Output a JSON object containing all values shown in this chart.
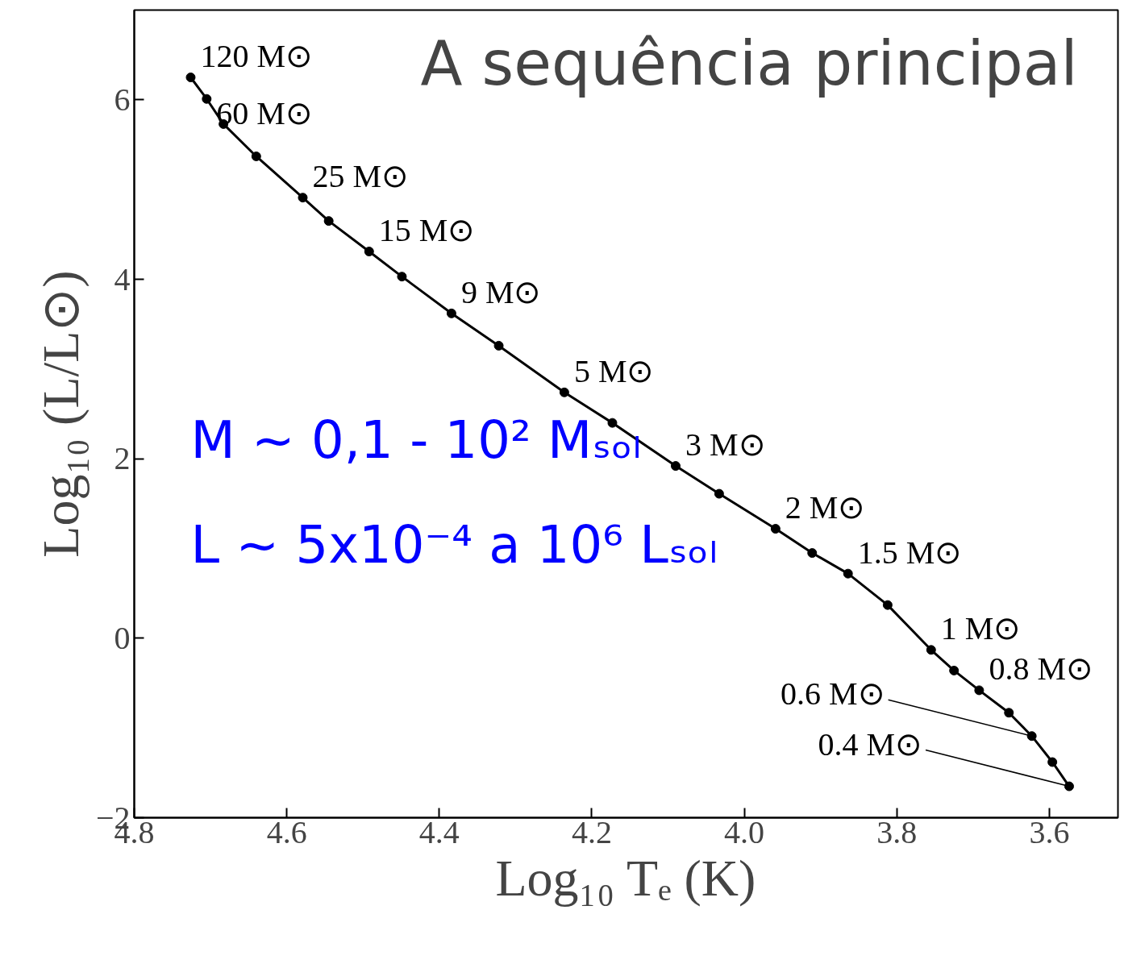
{
  "chart_data": {
    "type": "line",
    "title": "A sequência principal",
    "xlabel": "Log₁₀ Tₑ (K)",
    "ylabel": "Log₁₀ (L/L⊙)",
    "xlim": [
      4.8,
      3.51
    ],
    "ylim": [
      -2,
      7
    ],
    "xticks": [
      {
        "value": 4.8,
        "label": "4.8"
      },
      {
        "value": 4.6,
        "label": "4.6"
      },
      {
        "value": 4.4,
        "label": "4.4"
      },
      {
        "value": 4.2,
        "label": "4.2"
      },
      {
        "value": 4.0,
        "label": "4.0"
      },
      {
        "value": 3.8,
        "label": "3.8"
      },
      {
        "value": 3.6,
        "label": "3.6"
      }
    ],
    "yticks": [
      {
        "value": -2,
        "label": "−2"
      },
      0,
      2,
      4,
      6
    ],
    "grid": false,
    "marker": "circle",
    "line_style": "solid",
    "series": [
      {
        "color": "#000000",
        "x": [
          4.726,
          4.705,
          4.683,
          4.64,
          4.579,
          4.545,
          4.492,
          4.449,
          4.384,
          4.322,
          4.236,
          4.173,
          4.09,
          4.033,
          3.959,
          3.911,
          3.864,
          3.812,
          3.755,
          3.725,
          3.692,
          3.653,
          3.623,
          3.596,
          3.574
        ],
        "values": [
          6.25,
          6.01,
          5.73,
          5.37,
          4.91,
          4.65,
          4.31,
          4.03,
          3.62,
          3.26,
          2.74,
          2.4,
          1.92,
          1.61,
          1.22,
          0.95,
          0.72,
          0.37,
          -0.13,
          -0.36,
          -0.58,
          -0.83,
          -1.09,
          -1.38,
          -1.65
        ]
      }
    ],
    "annotations": [
      {
        "text": "120 M⊙",
        "x": 4.726,
        "y": 6.25
      },
      {
        "text": "60 M⊙",
        "x": 4.705,
        "y": 6.01
      },
      {
        "text": "25 M⊙",
        "x": 4.579,
        "y": 4.91
      },
      {
        "text": "15 M⊙",
        "x": 4.492,
        "y": 4.31
      },
      {
        "text": "9 M⊙",
        "x": 4.384,
        "y": 3.62
      },
      {
        "text": "5 M⊙",
        "x": 4.236,
        "y": 2.74
      },
      {
        "text": "3 M⊙",
        "x": 4.09,
        "y": 1.92
      },
      {
        "text": "2 M⊙",
        "x": 3.959,
        "y": 1.22
      },
      {
        "text": "1.5 M⊙",
        "x": 3.864,
        "y": 0.72
      },
      {
        "text": "1 M⊙",
        "x": 3.755,
        "y": -0.13
      },
      {
        "text": "0.8 M⊙",
        "x": 3.692,
        "y": -0.58
      },
      {
        "text": "0.6 M⊙",
        "x": 3.623,
        "y": -1.09
      },
      {
        "text": "0.4 M⊙",
        "x": 3.574,
        "y": -1.65
      },
      "M ~ 0,1 - 10² Mₛₒₗ",
      "L ~ 5x10⁻⁴ a 10⁶ Lₛₒₗ"
    ]
  }
}
